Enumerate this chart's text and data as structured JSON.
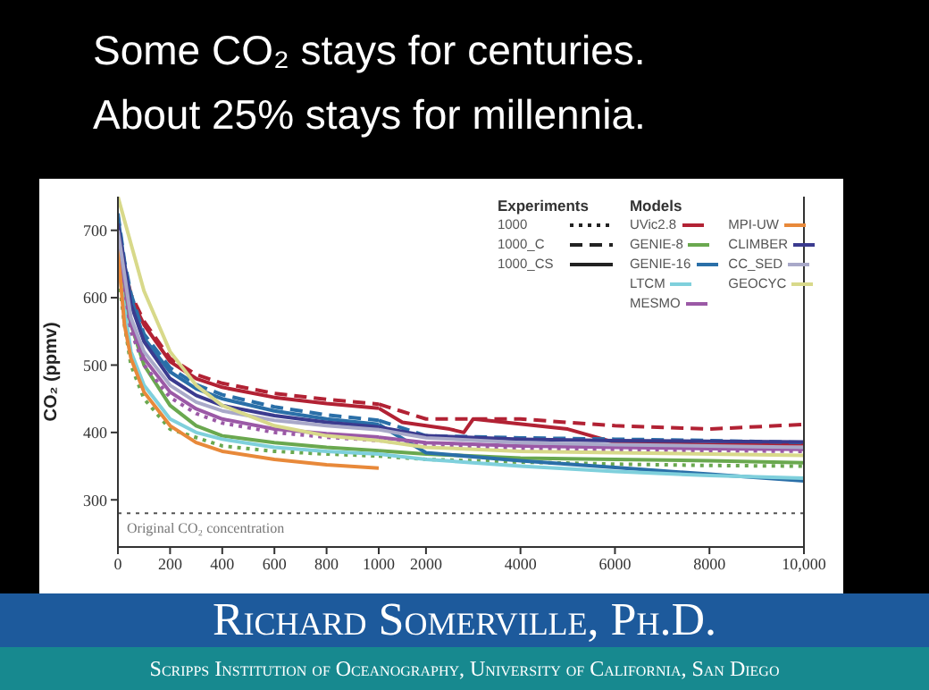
{
  "chart_data": [
    {
      "type": "line",
      "title": "Some CO₂ stays for centuries.",
      "subtitle": "About 25% stays for millennia.",
      "ylabel": "CO₂ (ppmv)",
      "annotations": [
        "Richard Somerville, Ph.D.",
        "Scripps Institution of Oceanography, University of California, San Diego"
      ],
      "xlim": [
        0,
        1000
      ],
      "xticks": [
        0,
        200,
        400,
        600,
        800,
        1000
      ],
      "ylim": [
        230,
        750
      ],
      "yticks": [
        300,
        400,
        500,
        600,
        700
      ],
      "grid": false,
      "legend": false,
      "marker": "none",
      "ref_lines": [
        {
          "axis": "y",
          "value": 280,
          "label": "Original CO₂ concentration",
          "color": "#555555",
          "line_style": "dotted"
        }
      ],
      "series": [
        {
          "color": "#b22234",
          "line_style": "solid",
          "x": [
            0,
            25,
            50,
            100,
            200,
            300,
            400,
            600,
            800,
            1000
          ],
          "values": [
            700,
            640,
            600,
            560,
            505,
            480,
            467,
            452,
            443,
            436
          ]
        },
        {
          "color": "#b22234",
          "line_style": "dashed",
          "x": [
            0,
            25,
            50,
            100,
            200,
            300,
            400,
            600,
            800,
            1000
          ],
          "values": [
            705,
            645,
            605,
            565,
            510,
            486,
            473,
            458,
            449,
            442
          ]
        },
        {
          "color": "#6aa84f",
          "line_style": "solid",
          "x": [
            0,
            25,
            50,
            100,
            200,
            300,
            400,
            600,
            800,
            1000
          ],
          "values": [
            680,
            600,
            560,
            500,
            440,
            410,
            395,
            385,
            378,
            373
          ]
        },
        {
          "color": "#6aa84f",
          "line_style": "dotted",
          "x": [
            0,
            25,
            50,
            100,
            200,
            400,
            600,
            800,
            1000
          ],
          "values": [
            640,
            560,
            500,
            450,
            405,
            380,
            372,
            368,
            365
          ]
        },
        {
          "color": "#2a6fa8",
          "line_style": "solid",
          "x": [
            0,
            25,
            50,
            100,
            200,
            300,
            400,
            600,
            800,
            1000
          ],
          "values": [
            720,
            650,
            600,
            540,
            490,
            465,
            450,
            432,
            420,
            412
          ]
        },
        {
          "color": "#2a6fa8",
          "line_style": "dashed",
          "x": [
            0,
            25,
            50,
            100,
            200,
            300,
            400,
            600,
            800,
            1000
          ],
          "values": [
            725,
            655,
            606,
            546,
            496,
            471,
            456,
            438,
            426,
            418
          ]
        },
        {
          "color": "#7fd0dc",
          "line_style": "solid",
          "x": [
            0,
            50,
            100,
            200,
            300,
            400,
            600,
            800,
            1000
          ],
          "values": [
            650,
            520,
            470,
            420,
            400,
            390,
            378,
            372,
            368
          ]
        },
        {
          "color": "#9b59a6",
          "line_style": "solid",
          "x": [
            0,
            50,
            100,
            200,
            300,
            400,
            600,
            800,
            1000
          ],
          "values": [
            690,
            560,
            510,
            460,
            435,
            420,
            405,
            398,
            393
          ]
        },
        {
          "color": "#9b59a6",
          "line_style": "dotted",
          "x": [
            0,
            50,
            100,
            200,
            300,
            400,
            600,
            800,
            1000
          ],
          "values": [
            680,
            550,
            500,
            452,
            428,
            414,
            400,
            393,
            388
          ]
        },
        {
          "color": "#e8893a",
          "line_style": "solid",
          "x": [
            0,
            25,
            50,
            100,
            200,
            300,
            400,
            600,
            800,
            1000
          ],
          "values": [
            670,
            560,
            510,
            460,
            410,
            385,
            372,
            360,
            352,
            347
          ]
        },
        {
          "color": "#3b3b8f",
          "line_style": "solid",
          "x": [
            0,
            50,
            100,
            200,
            300,
            400,
            600,
            800,
            1000
          ],
          "values": [
            710,
            590,
            535,
            480,
            455,
            440,
            425,
            415,
            408
          ]
        },
        {
          "color": "#a9a9c9",
          "line_style": "solid",
          "x": [
            0,
            50,
            100,
            200,
            300,
            400,
            600,
            800,
            1000
          ],
          "values": [
            700,
            570,
            520,
            470,
            445,
            432,
            418,
            410,
            404
          ]
        },
        {
          "color": "#d8d98a",
          "line_style": "solid",
          "x": [
            0,
            50,
            100,
            200,
            300,
            400,
            600,
            800,
            1000
          ],
          "values": [
            750,
            680,
            610,
            520,
            470,
            440,
            410,
            395,
            388
          ]
        }
      ]
    },
    {
      "type": "line",
      "xlim": [
        1000,
        10000
      ],
      "xticks": [
        2000,
        4000,
        6000,
        8000,
        {
          "value": 10000,
          "label": "10,000"
        }
      ],
      "ylim": [
        230,
        750
      ],
      "yticks": [
        300,
        400,
        500,
        600,
        700
      ],
      "tick_labels": "x",
      "grid": false,
      "legend": "top right",
      "legend_title": "Models",
      "annotations": [
        "Experiments",
        "1000",
        "1000_C",
        "1000_CS"
      ],
      "marker": "none",
      "ref_lines": [
        {
          "axis": "y",
          "value": 280,
          "color": "#555555",
          "line_style": "dotted"
        }
      ],
      "series": [
        {
          "name": "UVic2.8",
          "color": "#b22234",
          "line_style": "solid",
          "x": [
            1000,
            1500,
            2500,
            2800,
            3000,
            5000,
            6000,
            8000,
            10000
          ],
          "values": [
            436,
            415,
            405,
            400,
            420,
            405,
            385,
            382,
            383
          ]
        },
        {
          "color": "#b22234",
          "line_style": "dashed",
          "x": [
            1000,
            2000,
            4000,
            6000,
            8000,
            10000
          ],
          "values": [
            442,
            420,
            420,
            410,
            405,
            412
          ]
        },
        {
          "name": "GENIE-8",
          "color": "#6aa84f",
          "line_style": "solid",
          "x": [
            1000,
            2000,
            4000,
            6000,
            8000,
            10000
          ],
          "values": [
            373,
            368,
            362,
            360,
            358,
            355
          ]
        },
        {
          "color": "#6aa84f",
          "line_style": "dotted",
          "x": [
            1000,
            2000,
            4000,
            6000,
            8000,
            10000
          ],
          "values": [
            365,
            360,
            356,
            353,
            351,
            350
          ]
        },
        {
          "name": "GENIE-16",
          "color": "#2a6fa8",
          "line_style": "solid",
          "x": [
            1000,
            2000,
            4000,
            6000,
            8000,
            10000
          ],
          "values": [
            412,
            370,
            358,
            348,
            338,
            328
          ]
        },
        {
          "color": "#2a6fa8",
          "line_style": "dashed",
          "x": [
            1000,
            2000,
            4000,
            6000,
            8000,
            10000
          ],
          "values": [
            418,
            395,
            392,
            390,
            388,
            385
          ]
        },
        {
          "name": "LTCM",
          "color": "#7fd0dc",
          "line_style": "solid",
          "x": [
            1000,
            2000,
            4000,
            6000,
            8000,
            10000
          ],
          "values": [
            368,
            360,
            350,
            342,
            336,
            332
          ]
        },
        {
          "name": "MESMO",
          "color": "#9b59a6",
          "line_style": "solid",
          "x": [
            1000,
            2000,
            4000,
            6000,
            8000,
            10000
          ],
          "values": [
            393,
            385,
            380,
            378,
            376,
            375
          ]
        },
        {
          "color": "#9b59a6",
          "line_style": "dotted",
          "x": [
            1000,
            2000,
            4000,
            6000,
            8000,
            10000
          ],
          "values": [
            388,
            380,
            376,
            374,
            373,
            372
          ]
        },
        {
          "name": "MPI-UW",
          "color": "#e8893a",
          "line_style": "solid"
        },
        {
          "name": "CLIMBER",
          "color": "#3b3b8f",
          "line_style": "solid",
          "x": [
            1000,
            2000,
            4000,
            6000,
            8000,
            10000
          ],
          "values": [
            408,
            395,
            390,
            388,
            387,
            386
          ]
        },
        {
          "name": "CC_SED",
          "color": "#a9a9c9",
          "line_style": "solid",
          "x": [
            1000,
            2000,
            4000,
            6000,
            8000,
            10000
          ],
          "values": [
            404,
            392,
            385,
            382,
            380,
            378
          ]
        },
        {
          "name": "GEOCYC",
          "color": "#d8d98a",
          "line_style": "solid",
          "x": [
            1000,
            2000,
            4000,
            6000,
            8000,
            10000
          ],
          "values": [
            388,
            378,
            372,
            370,
            368,
            366
          ]
        }
      ]
    }
  ]
}
